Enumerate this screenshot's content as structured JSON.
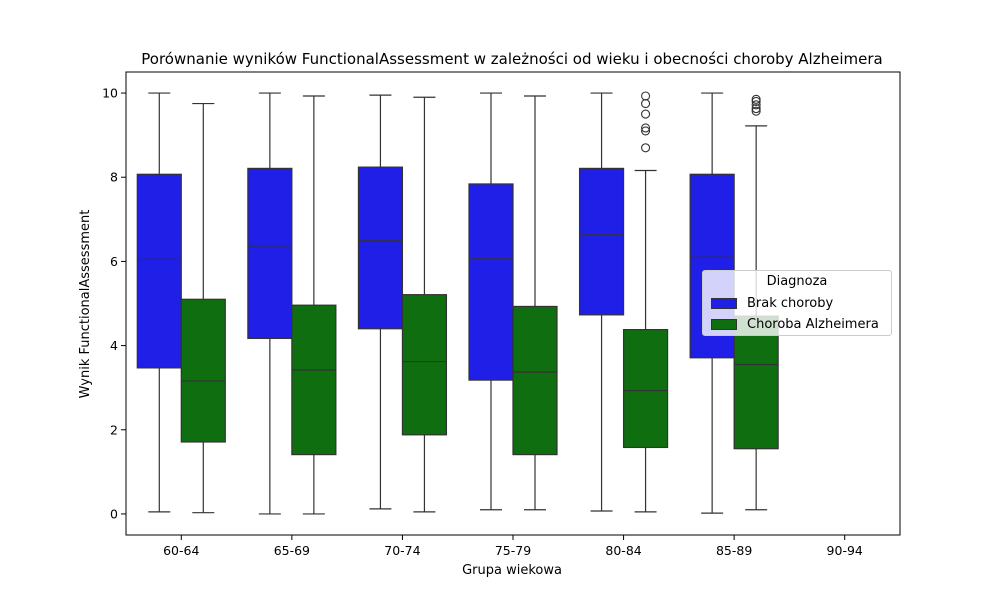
{
  "chart_data": {
    "type": "box",
    "title": "Porównanie wyników FunctionalAssessment w zależności od wieku i obecności choroby Alzheimera",
    "xlabel": "Grupa wiekowa",
    "ylabel": "Wynik FunctionalAssessment",
    "categories": [
      "60-64",
      "65-69",
      "70-74",
      "75-79",
      "80-84",
      "85-89",
      "90-94"
    ],
    "yticks": [
      0,
      2,
      4,
      6,
      8,
      10
    ],
    "ylim": [
      -0.5,
      10.5
    ],
    "legend": {
      "title": "Diagnoza",
      "placement": "center-right"
    },
    "series": [
      {
        "name": "Brak choroby",
        "color": "#1f1fe8",
        "boxes": [
          {
            "category": "60-64",
            "whisker_low": 0.05,
            "q1": 3.47,
            "median": 6.05,
            "q3": 8.07,
            "whisker_high": 10.0,
            "outliers": []
          },
          {
            "category": "65-69",
            "whisker_low": 0.0,
            "q1": 4.17,
            "median": 6.34,
            "q3": 8.21,
            "whisker_high": 10.0,
            "outliers": []
          },
          {
            "category": "70-74",
            "whisker_low": 0.12,
            "q1": 4.4,
            "median": 6.49,
            "q3": 8.24,
            "whisker_high": 9.95,
            "outliers": []
          },
          {
            "category": "75-79",
            "whisker_low": 0.1,
            "q1": 3.18,
            "median": 6.06,
            "q3": 7.84,
            "whisker_high": 10.0,
            "outliers": []
          },
          {
            "category": "80-84",
            "whisker_low": 0.07,
            "q1": 4.73,
            "median": 6.63,
            "q3": 8.21,
            "whisker_high": 10.0,
            "outliers": []
          },
          {
            "category": "85-89",
            "whisker_low": 0.02,
            "q1": 3.71,
            "median": 6.1,
            "q3": 8.07,
            "whisker_high": 10.0,
            "outliers": []
          },
          {
            "category": "90-94",
            "empty": true
          }
        ]
      },
      {
        "name": "Choroba Alzheimera",
        "color": "#0f6f10",
        "boxes": [
          {
            "category": "60-64",
            "whisker_low": 0.03,
            "q1": 1.71,
            "median": 3.16,
            "q3": 5.1,
            "whisker_high": 9.75,
            "outliers": []
          },
          {
            "category": "65-69",
            "whisker_low": 0.0,
            "q1": 1.41,
            "median": 3.42,
            "q3": 4.96,
            "whisker_high": 9.93,
            "outliers": []
          },
          {
            "category": "70-74",
            "whisker_low": 0.05,
            "q1": 1.88,
            "median": 3.62,
            "q3": 5.21,
            "whisker_high": 9.9,
            "outliers": []
          },
          {
            "category": "75-79",
            "whisker_low": 0.1,
            "q1": 1.41,
            "median": 3.37,
            "q3": 4.93,
            "whisker_high": 9.93,
            "outliers": []
          },
          {
            "category": "80-84",
            "whisker_low": 0.05,
            "q1": 1.58,
            "median": 2.93,
            "q3": 4.38,
            "whisker_high": 8.16,
            "outliers": [
              8.7,
              9.1,
              9.17,
              9.5,
              9.75,
              9.93
            ]
          },
          {
            "category": "85-89",
            "whisker_low": 0.1,
            "q1": 1.55,
            "median": 3.55,
            "q3": 4.7,
            "whisker_high": 9.22,
            "outliers": [
              9.57,
              9.63,
              9.72,
              9.8,
              9.85
            ]
          },
          {
            "category": "90-94",
            "empty": true
          }
        ]
      }
    ]
  }
}
